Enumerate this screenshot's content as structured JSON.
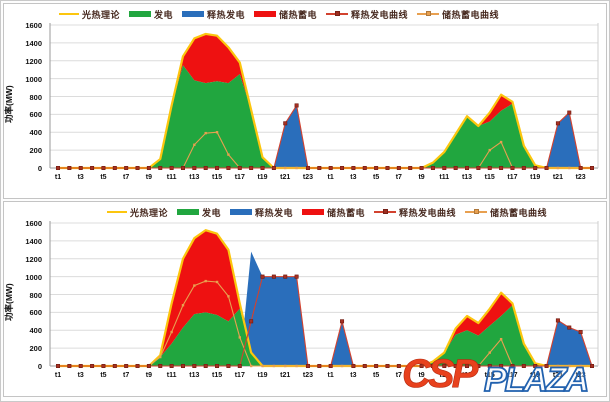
{
  "y_axis": {
    "label": "功率(MW)",
    "min": 0,
    "max": 1600,
    "step": 200
  },
  "watermark": {
    "part1": "CSP",
    "part2": "PLAZA",
    "color1": "#e8411d",
    "color2": "#2161ae"
  },
  "legend": [
    {
      "label": "光热理论",
      "swatch": "line",
      "color": "#fcc60e"
    },
    {
      "label": "发电",
      "swatch": "bar",
      "color": "#21a63f"
    },
    {
      "label": "释热发电",
      "swatch": "bar",
      "color": "#2a6ebb"
    },
    {
      "label": "储热蓄电",
      "swatch": "bar",
      "color": "#ee1111"
    },
    {
      "label": "释热发电曲线",
      "swatch": "line-marker",
      "color": "#d2422f",
      "marker": "#9e2d1f"
    },
    {
      "label": "储热蓄电曲线",
      "swatch": "line-marker",
      "color": "#e8a050",
      "marker": "#e8a050"
    }
  ],
  "chart_data": [
    {
      "type": "area",
      "title": "",
      "ylabel": "功率(MW)",
      "ylim": [
        0,
        1600
      ],
      "ytick_step": 200,
      "grid": true,
      "legend_position": "top",
      "categories": [
        "t1",
        "t2",
        "t3",
        "t4",
        "t5",
        "t6",
        "t7",
        "t8",
        "t9",
        "t10",
        "t11",
        "t12",
        "t13",
        "t14",
        "t15",
        "t16",
        "t17",
        "t18",
        "t19",
        "t20",
        "t21",
        "t22",
        "t23",
        "t24",
        "t1",
        "t2",
        "t3",
        "t4",
        "t5",
        "t6",
        "t7",
        "t8",
        "t9",
        "t10",
        "t11",
        "t12",
        "t13",
        "t14",
        "t15",
        "t16",
        "t17",
        "t18",
        "t19",
        "t20",
        "t21",
        "t22",
        "t23",
        "t24"
      ],
      "xtick_labels": [
        "t1",
        "t3",
        "t5",
        "t7",
        "t9",
        "t11",
        "t13",
        "t15",
        "t17",
        "t19",
        "t21",
        "t23",
        "t1",
        "t3",
        "t5",
        "t7",
        "t9",
        "t11",
        "t13",
        "t15",
        "t17",
        "t19",
        "t21",
        "t23"
      ],
      "series": [
        {
          "name": "发电",
          "kind": "area",
          "color": "#21a63f",
          "values": [
            0,
            0,
            0,
            0,
            0,
            0,
            0,
            0,
            0,
            100,
            700,
            1150,
            980,
            950,
            970,
            950,
            1050,
            650,
            120,
            0,
            0,
            0,
            0,
            0,
            0,
            0,
            0,
            0,
            0,
            0,
            0,
            0,
            0,
            60,
            180,
            380,
            580,
            470,
            520,
            640,
            720,
            250,
            30,
            0,
            0,
            0,
            0,
            0
          ]
        },
        {
          "name": "储热蓄电",
          "kind": "area-stacked",
          "stack_on": "发电",
          "color": "#ee1111",
          "values": [
            0,
            0,
            0,
            0,
            0,
            0,
            0,
            0,
            0,
            0,
            0,
            100,
            470,
            550,
            510,
            400,
            130,
            0,
            0,
            0,
            0,
            0,
            0,
            0,
            0,
            0,
            0,
            0,
            0,
            0,
            0,
            0,
            0,
            0,
            0,
            0,
            0,
            0,
            100,
            180,
            20,
            0,
            0,
            0,
            0,
            0,
            0,
            0
          ]
        },
        {
          "name": "释热发电",
          "kind": "area",
          "color": "#2a6ebb",
          "values": [
            0,
            0,
            0,
            0,
            0,
            0,
            0,
            0,
            0,
            0,
            0,
            0,
            0,
            0,
            0,
            0,
            0,
            0,
            0,
            0,
            500,
            700,
            0,
            0,
            0,
            0,
            0,
            0,
            0,
            0,
            0,
            0,
            0,
            0,
            0,
            0,
            0,
            0,
            0,
            0,
            0,
            0,
            0,
            0,
            500,
            620,
            0,
            0
          ]
        },
        {
          "name": "光热理论",
          "kind": "line",
          "color": "#fcc60e",
          "values": [
            0,
            0,
            0,
            0,
            0,
            0,
            0,
            0,
            0,
            100,
            700,
            1250,
            1450,
            1500,
            1480,
            1350,
            1180,
            650,
            120,
            0,
            0,
            0,
            0,
            0,
            0,
            0,
            0,
            0,
            0,
            0,
            0,
            0,
            0,
            60,
            180,
            380,
            580,
            470,
            620,
            820,
            740,
            250,
            30,
            0,
            0,
            0,
            0,
            0
          ]
        },
        {
          "name": "储热蓄电曲线",
          "kind": "line-marker",
          "color": "#e8a050",
          "marker_color": "#e8a050",
          "values": [
            0,
            0,
            0,
            0,
            0,
            0,
            0,
            0,
            0,
            0,
            0,
            0,
            260,
            390,
            400,
            150,
            0,
            0,
            0,
            0,
            0,
            0,
            0,
            0,
            0,
            0,
            0,
            0,
            0,
            0,
            0,
            0,
            0,
            0,
            0,
            0,
            0,
            0,
            200,
            290,
            0,
            0,
            0,
            0,
            0,
            0,
            0,
            0
          ]
        },
        {
          "name": "释热发电曲线",
          "kind": "line-marker",
          "color": "#d2422f",
          "marker_color": "#a63022",
          "values": [
            0,
            0,
            0,
            0,
            0,
            0,
            0,
            0,
            0,
            0,
            0,
            0,
            0,
            0,
            0,
            0,
            0,
            0,
            0,
            0,
            500,
            700,
            0,
            0,
            0,
            0,
            0,
            0,
            0,
            0,
            0,
            0,
            0,
            0,
            0,
            0,
            0,
            0,
            0,
            0,
            0,
            0,
            0,
            0,
            500,
            620,
            0,
            0
          ]
        }
      ]
    },
    {
      "type": "area",
      "title": "",
      "ylabel": "功率(MW)",
      "ylim": [
        0,
        1600
      ],
      "ytick_step": 200,
      "grid": true,
      "legend_position": "top",
      "categories": [
        "t1",
        "t2",
        "t3",
        "t4",
        "t5",
        "t6",
        "t7",
        "t8",
        "t9",
        "t10",
        "t11",
        "t12",
        "t13",
        "t14",
        "t15",
        "t16",
        "t17",
        "t18",
        "t19",
        "t20",
        "t21",
        "t22",
        "t23",
        "t24",
        "t1",
        "t2",
        "t3",
        "t4",
        "t5",
        "t6",
        "t7",
        "t8",
        "t9",
        "t10",
        "t11",
        "t12",
        "t13",
        "t14",
        "t15",
        "t16",
        "t17",
        "t18",
        "t19",
        "t20",
        "t21",
        "t22",
        "t23",
        "t24"
      ],
      "xtick_labels": [
        "t1",
        "t3",
        "t5",
        "t7",
        "t9",
        "t11",
        "t13",
        "t15",
        "t17",
        "t19",
        "t21",
        "t23",
        "t1",
        "t3",
        "t5",
        "t7",
        "t9",
        "t11",
        "t13",
        "t15",
        "t17",
        "t19",
        "t21",
        "t23"
      ],
      "series": [
        {
          "name": "发电",
          "kind": "area",
          "color": "#21a63f",
          "values": [
            0,
            0,
            0,
            0,
            0,
            0,
            0,
            0,
            0,
            100,
            250,
            430,
            580,
            600,
            570,
            500,
            640,
            150,
            0,
            0,
            0,
            0,
            0,
            0,
            0,
            0,
            0,
            0,
            0,
            0,
            0,
            0,
            0,
            50,
            150,
            350,
            400,
            340,
            450,
            560,
            680,
            250,
            30,
            0,
            0,
            0,
            0,
            0
          ]
        },
        {
          "name": "储热蓄电",
          "kind": "area-stacked",
          "stack_on": "发电",
          "color": "#ee1111",
          "values": [
            0,
            0,
            0,
            0,
            0,
            0,
            0,
            0,
            0,
            20,
            450,
            770,
            850,
            920,
            910,
            800,
            60,
            0,
            0,
            0,
            0,
            0,
            0,
            0,
            0,
            0,
            0,
            0,
            0,
            0,
            0,
            0,
            0,
            0,
            0,
            70,
            160,
            140,
            190,
            260,
            20,
            0,
            0,
            0,
            0,
            0,
            0,
            0
          ]
        },
        {
          "name": "释热发电",
          "kind": "area",
          "color": "#2a6ebb",
          "values": [
            0,
            0,
            0,
            0,
            0,
            0,
            0,
            0,
            0,
            0,
            0,
            0,
            0,
            0,
            0,
            0,
            0,
            1280,
            1000,
            1000,
            1000,
            1000,
            0,
            0,
            0,
            500,
            0,
            0,
            0,
            0,
            0,
            0,
            0,
            0,
            0,
            0,
            0,
            0,
            0,
            0,
            0,
            0,
            0,
            0,
            510,
            430,
            380,
            0
          ]
        },
        {
          "name": "光热理论",
          "kind": "line",
          "color": "#fcc60e",
          "values": [
            0,
            0,
            0,
            0,
            0,
            0,
            0,
            0,
            0,
            120,
            700,
            1200,
            1430,
            1520,
            1480,
            1300,
            700,
            150,
            0,
            0,
            0,
            0,
            0,
            0,
            0,
            0,
            0,
            0,
            0,
            0,
            0,
            0,
            0,
            50,
            150,
            420,
            560,
            480,
            640,
            820,
            700,
            250,
            30,
            0,
            0,
            0,
            0,
            0
          ]
        },
        {
          "name": "储热蓄电曲线",
          "kind": "line-marker",
          "color": "#e8a050",
          "marker_color": "#e8a050",
          "values": [
            0,
            0,
            0,
            0,
            0,
            0,
            0,
            0,
            0,
            100,
            380,
            680,
            900,
            950,
            940,
            780,
            320,
            0,
            0,
            0,
            0,
            0,
            0,
            0,
            0,
            0,
            0,
            0,
            0,
            0,
            0,
            0,
            0,
            0,
            0,
            0,
            0,
            0,
            150,
            300,
            0,
            0,
            0,
            0,
            0,
            0,
            0,
            0
          ]
        },
        {
          "name": "释热发电曲线",
          "kind": "line-marker",
          "color": "#d2422f",
          "marker_color": "#a63022",
          "values": [
            0,
            0,
            0,
            0,
            0,
            0,
            0,
            0,
            0,
            0,
            0,
            0,
            0,
            0,
            0,
            0,
            0,
            500,
            1000,
            1000,
            1000,
            1000,
            0,
            0,
            0,
            500,
            0,
            0,
            0,
            0,
            0,
            0,
            0,
            0,
            0,
            0,
            0,
            0,
            0,
            0,
            0,
            0,
            0,
            0,
            510,
            430,
            380,
            0
          ]
        }
      ]
    }
  ]
}
